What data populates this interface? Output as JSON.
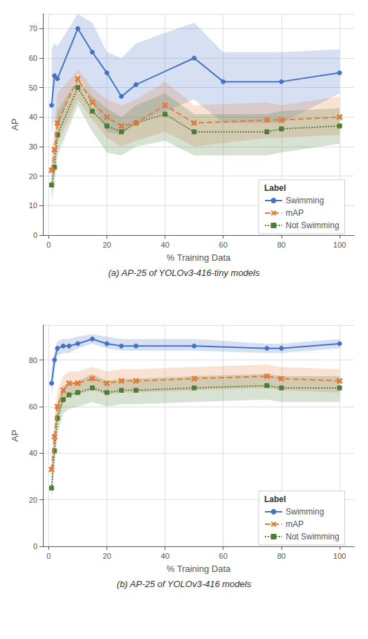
{
  "chart_data": [
    {
      "type": "line",
      "caption": "(a) AP-25 of YOLOv3-416-tiny models",
      "x_label": "% Training Data",
      "y_label": "AP",
      "xlim": [
        -2,
        105
      ],
      "xticks": [
        0,
        20,
        40,
        60,
        80,
        100
      ],
      "ylim": [
        0,
        75
      ],
      "yticks": [
        0,
        10,
        20,
        30,
        40,
        50,
        60,
        70
      ],
      "grid": true,
      "legend": "lower right",
      "legend_title": "Label",
      "series": [
        {
          "name": "Swimming",
          "color": "#4472c4",
          "marker": "circle",
          "line_style": "solid",
          "x": [
            1,
            2,
            3,
            10,
            15,
            20,
            25,
            30,
            50,
            60,
            80,
            100
          ],
          "values": [
            44,
            54,
            53,
            70,
            62,
            55,
            47,
            51,
            60,
            52,
            52,
            55
          ],
          "lo": [
            34,
            40,
            36,
            55,
            45,
            35,
            34,
            38,
            46,
            38,
            38,
            48
          ],
          "hi": [
            63,
            65,
            64,
            75,
            72,
            62,
            60,
            65,
            72,
            62,
            62,
            63
          ]
        },
        {
          "name": "mAP",
          "color": "#e07b3a",
          "marker": "x",
          "line_style": "dashed",
          "x": [
            1,
            2,
            3,
            10,
            15,
            20,
            25,
            30,
            40,
            50,
            75,
            80,
            100
          ],
          "values": [
            22,
            29,
            38,
            53,
            45,
            40,
            37,
            38,
            44,
            38,
            39,
            39,
            40
          ],
          "lo": [
            15,
            22,
            31,
            46,
            39,
            33,
            30,
            32,
            35,
            30,
            33,
            33,
            34
          ],
          "hi": [
            28,
            37,
            48,
            56,
            50,
            46,
            44,
            46,
            52,
            44,
            45,
            44,
            47
          ]
        },
        {
          "name": "Not Swimming",
          "color": "#4e7d35",
          "marker": "square",
          "line_style": "dotted",
          "x": [
            1,
            2,
            3,
            10,
            15,
            20,
            25,
            30,
            40,
            50,
            75,
            80,
            100
          ],
          "values": [
            17,
            23,
            34,
            50,
            42,
            37,
            35,
            38,
            41,
            35,
            35,
            36,
            37
          ],
          "lo": [
            12,
            17,
            27,
            44,
            35,
            28,
            27,
            30,
            32,
            27,
            27,
            28,
            31
          ],
          "hi": [
            23,
            29,
            42,
            53,
            47,
            43,
            40,
            44,
            48,
            41,
            41,
            42,
            43
          ]
        }
      ]
    },
    {
      "type": "line",
      "caption": "(b) AP-25 of YOLOv3-416 models",
      "x_label": "% Training Data",
      "y_label": "AP",
      "xlim": [
        -2,
        105
      ],
      "xticks": [
        0,
        20,
        40,
        60,
        80,
        100
      ],
      "ylim": [
        0,
        95
      ],
      "yticks": [
        0,
        20,
        40,
        60,
        80
      ],
      "grid": true,
      "legend": "lower right",
      "legend_title": "Label",
      "series": [
        {
          "name": "Swimming",
          "color": "#4472c4",
          "marker": "circle",
          "line_style": "solid",
          "x": [
            1,
            2,
            3,
            5,
            7,
            10,
            15,
            20,
            25,
            30,
            50,
            75,
            80,
            100
          ],
          "values": [
            70,
            80,
            85,
            86,
            86,
            87,
            89,
            87,
            86,
            86,
            86,
            85,
            85,
            87
          ],
          "lo": [
            64,
            75,
            82,
            83,
            83,
            85,
            87,
            85,
            84,
            84,
            84,
            83,
            83,
            85
          ],
          "hi": [
            76,
            84,
            88,
            89,
            89,
            90,
            91,
            90,
            89,
            89,
            89,
            87,
            87,
            89
          ]
        },
        {
          "name": "mAP",
          "color": "#e07b3a",
          "marker": "x",
          "line_style": "dashed",
          "x": [
            1,
            2,
            3,
            5,
            7,
            10,
            15,
            20,
            25,
            30,
            50,
            75,
            80,
            100
          ],
          "values": [
            33,
            47,
            60,
            67,
            70,
            70,
            72,
            70,
            71,
            71,
            72,
            73,
            72,
            71
          ],
          "lo": [
            27,
            40,
            54,
            62,
            65,
            65,
            67,
            65,
            66,
            66,
            67,
            68,
            67,
            66
          ],
          "hi": [
            39,
            55,
            67,
            73,
            75,
            75,
            77,
            75,
            76,
            76,
            77,
            78,
            77,
            76
          ]
        },
        {
          "name": "Not Swimming",
          "color": "#4e7d35",
          "marker": "square",
          "line_style": "dotted",
          "x": [
            1,
            2,
            3,
            5,
            7,
            10,
            15,
            20,
            25,
            30,
            50,
            75,
            80,
            100
          ],
          "values": [
            25,
            41,
            55,
            63,
            65,
            66,
            68,
            66,
            67,
            67,
            68,
            69,
            68,
            68
          ],
          "lo": [
            19,
            35,
            48,
            57,
            59,
            60,
            62,
            60,
            61,
            61,
            62,
            63,
            62,
            62
          ],
          "hi": [
            31,
            47,
            62,
            69,
            70,
            71,
            74,
            71,
            72,
            72,
            73,
            74,
            73,
            73
          ]
        }
      ]
    }
  ]
}
